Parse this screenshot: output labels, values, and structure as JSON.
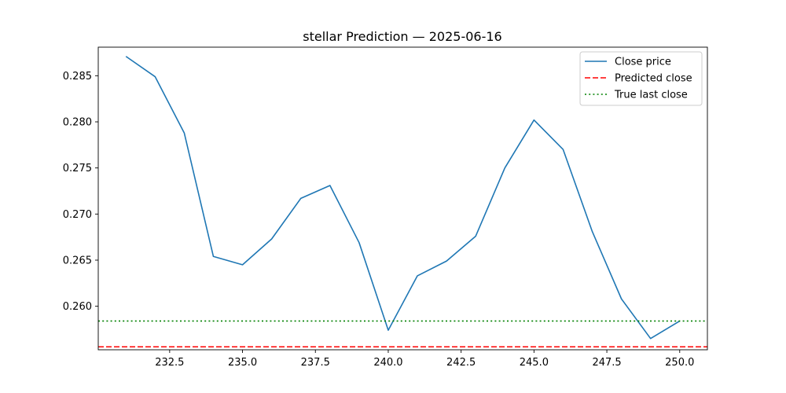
{
  "chart_data": {
    "type": "line",
    "title": "stellar Prediction — 2025-06-16",
    "xlabel": "",
    "ylabel": "",
    "xlim": [
      230.05,
      250.95
    ],
    "ylim": [
      0.25528,
      0.2881
    ],
    "grid": false,
    "legend_position": "top-right",
    "x_ticks": [
      232.5,
      235.0,
      237.5,
      240.0,
      242.5,
      245.0,
      247.5,
      250.0
    ],
    "x_tick_labels": [
      "232.5",
      "235.0",
      "237.5",
      "240.0",
      "242.5",
      "245.0",
      "247.5",
      "250.0"
    ],
    "y_ticks": [
      0.26,
      0.265,
      0.27,
      0.275,
      0.28,
      0.285
    ],
    "y_tick_labels": [
      "0.260",
      "0.265",
      "0.270",
      "0.275",
      "0.280",
      "0.285"
    ],
    "series": [
      {
        "name": "Close price",
        "style": "solid",
        "color": "#1f77b4",
        "x": [
          231,
          232,
          233,
          234,
          235,
          236,
          237,
          238,
          239,
          240,
          241,
          242,
          243,
          244,
          245,
          246,
          247,
          248,
          249,
          250
        ],
        "y": [
          0.2871,
          0.2849,
          0.2788,
          0.2654,
          0.2645,
          0.2673,
          0.2717,
          0.2731,
          0.2669,
          0.2574,
          0.2633,
          0.2649,
          0.2676,
          0.275,
          0.2802,
          0.277,
          0.2681,
          0.2608,
          0.2565,
          0.2584
        ]
      },
      {
        "name": "Predicted close",
        "style": "dashed",
        "color": "#ff0000",
        "hline": 0.2556
      },
      {
        "name": "True last close",
        "style": "dotted",
        "color": "#008000",
        "hline": 0.2584
      }
    ]
  }
}
